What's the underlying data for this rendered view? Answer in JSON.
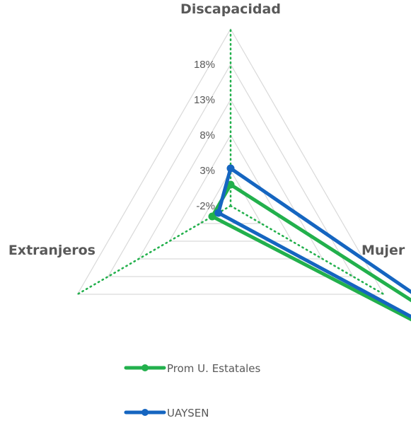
{
  "chart_data": {
    "type": "radar",
    "axes": [
      "Discapacidad",
      "Mujer",
      "Extranjeros"
    ],
    "radial_ticks": [
      "18%",
      "13%",
      "8%",
      "3%",
      "-2%"
    ],
    "rlim": [
      -0.02,
      0.23
    ],
    "grid": true,
    "series": [
      {
        "name": "Prom U. Estatales",
        "values": [
          0.01,
          0.53,
          0.01
        ],
        "color": "#22b04c",
        "marker": "circle"
      },
      {
        "name": "UAYSEN",
        "values": [
          0.033,
          0.55,
          0.0
        ],
        "color": "#1565c0",
        "marker": "circle"
      }
    ],
    "legend_position": "bottom",
    "axis_line_color": "#22b04c",
    "grid_color": "#d9d9d9"
  }
}
